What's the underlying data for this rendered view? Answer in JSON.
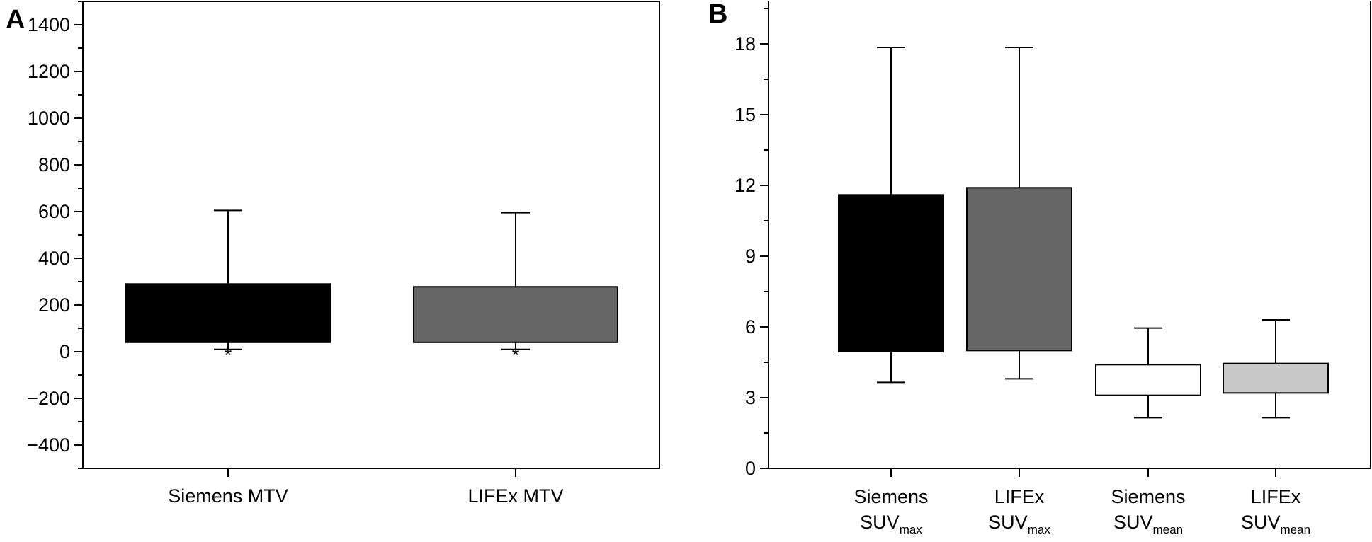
{
  "chart_data": [
    {
      "panel_label": "A",
      "type": "box",
      "ylim": [
        -500,
        1500
      ],
      "yticks": [
        -400,
        -200,
        0,
        200,
        400,
        600,
        800,
        1000,
        1200,
        1400
      ],
      "ytick_labels": [
        "−400",
        "−200",
        "0",
        "200",
        "400",
        "600",
        "800",
        "1000",
        "1200",
        "1400"
      ],
      "grid": false,
      "categories": [
        {
          "label_lines": [
            {
              "text": "Siemens MTV",
              "sub": ""
            }
          ],
          "color": "#000000",
          "whisker_low": 10,
          "q1": 40,
          "q3": 290,
          "whisker_high": 605,
          "marker": "*"
        },
        {
          "label_lines": [
            {
              "text": "LIFEx MTV",
              "sub": ""
            }
          ],
          "color": "#666666",
          "whisker_low": 10,
          "q1": 40,
          "q3": 278,
          "whisker_high": 595,
          "marker": "*"
        }
      ]
    },
    {
      "panel_label": "B",
      "type": "box",
      "ylim": [
        0,
        19.8
      ],
      "yticks": [
        0,
        3,
        6,
        9,
        12,
        15,
        18
      ],
      "ytick_labels": [
        "0",
        "3",
        "6",
        "9",
        "12",
        "15",
        "18"
      ],
      "grid": false,
      "categories": [
        {
          "label_lines": [
            {
              "text": "Siemens",
              "sub": ""
            },
            {
              "text": "SUV",
              "sub": "max"
            }
          ],
          "color": "#000000",
          "whisker_low": 3.65,
          "q1": 4.95,
          "q3": 11.6,
          "whisker_high": 17.85
        },
        {
          "label_lines": [
            {
              "text": "LIFEx",
              "sub": ""
            },
            {
              "text": "SUV",
              "sub": "max"
            }
          ],
          "color": "#666666",
          "whisker_low": 3.8,
          "q1": 5.0,
          "q3": 11.9,
          "whisker_high": 17.85
        },
        {
          "label_lines": [
            {
              "text": "Siemens",
              "sub": ""
            },
            {
              "text": "SUV",
              "sub": "mean"
            }
          ],
          "color": "#ffffff",
          "whisker_low": 2.15,
          "q1": 3.1,
          "q3": 4.4,
          "whisker_high": 5.95
        },
        {
          "label_lines": [
            {
              "text": "LIFEx",
              "sub": ""
            },
            {
              "text": "SUV",
              "sub": "mean"
            }
          ],
          "color": "#c8c8c8",
          "whisker_low": 2.15,
          "q1": 3.2,
          "q3": 4.45,
          "whisker_high": 6.3
        }
      ]
    }
  ]
}
